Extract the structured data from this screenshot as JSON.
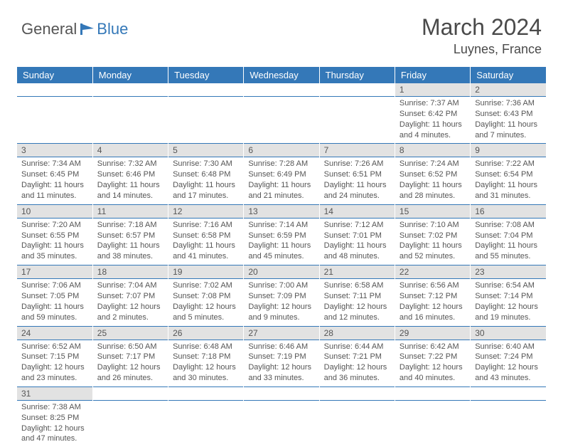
{
  "logo": {
    "text1": "General",
    "text2": "Blue"
  },
  "title": "March 2024",
  "location": "Luynes, France",
  "colors": {
    "header_bg": "#3478b8",
    "header_text": "#ffffff",
    "daynum_bg": "#e2e2e2",
    "text": "#555555",
    "row_border": "#3478b8",
    "logo_blue": "#3478b8"
  },
  "day_headers": [
    "Sunday",
    "Monday",
    "Tuesday",
    "Wednesday",
    "Thursday",
    "Friday",
    "Saturday"
  ],
  "weeks": [
    [
      null,
      null,
      null,
      null,
      null,
      {
        "n": "1",
        "sunrise": "Sunrise: 7:37 AM",
        "sunset": "Sunset: 6:42 PM",
        "daylight": "Daylight: 11 hours and 4 minutes."
      },
      {
        "n": "2",
        "sunrise": "Sunrise: 7:36 AM",
        "sunset": "Sunset: 6:43 PM",
        "daylight": "Daylight: 11 hours and 7 minutes."
      }
    ],
    [
      {
        "n": "3",
        "sunrise": "Sunrise: 7:34 AM",
        "sunset": "Sunset: 6:45 PM",
        "daylight": "Daylight: 11 hours and 11 minutes."
      },
      {
        "n": "4",
        "sunrise": "Sunrise: 7:32 AM",
        "sunset": "Sunset: 6:46 PM",
        "daylight": "Daylight: 11 hours and 14 minutes."
      },
      {
        "n": "5",
        "sunrise": "Sunrise: 7:30 AM",
        "sunset": "Sunset: 6:48 PM",
        "daylight": "Daylight: 11 hours and 17 minutes."
      },
      {
        "n": "6",
        "sunrise": "Sunrise: 7:28 AM",
        "sunset": "Sunset: 6:49 PM",
        "daylight": "Daylight: 11 hours and 21 minutes."
      },
      {
        "n": "7",
        "sunrise": "Sunrise: 7:26 AM",
        "sunset": "Sunset: 6:51 PM",
        "daylight": "Daylight: 11 hours and 24 minutes."
      },
      {
        "n": "8",
        "sunrise": "Sunrise: 7:24 AM",
        "sunset": "Sunset: 6:52 PM",
        "daylight": "Daylight: 11 hours and 28 minutes."
      },
      {
        "n": "9",
        "sunrise": "Sunrise: 7:22 AM",
        "sunset": "Sunset: 6:54 PM",
        "daylight": "Daylight: 11 hours and 31 minutes."
      }
    ],
    [
      {
        "n": "10",
        "sunrise": "Sunrise: 7:20 AM",
        "sunset": "Sunset: 6:55 PM",
        "daylight": "Daylight: 11 hours and 35 minutes."
      },
      {
        "n": "11",
        "sunrise": "Sunrise: 7:18 AM",
        "sunset": "Sunset: 6:57 PM",
        "daylight": "Daylight: 11 hours and 38 minutes."
      },
      {
        "n": "12",
        "sunrise": "Sunrise: 7:16 AM",
        "sunset": "Sunset: 6:58 PM",
        "daylight": "Daylight: 11 hours and 41 minutes."
      },
      {
        "n": "13",
        "sunrise": "Sunrise: 7:14 AM",
        "sunset": "Sunset: 6:59 PM",
        "daylight": "Daylight: 11 hours and 45 minutes."
      },
      {
        "n": "14",
        "sunrise": "Sunrise: 7:12 AM",
        "sunset": "Sunset: 7:01 PM",
        "daylight": "Daylight: 11 hours and 48 minutes."
      },
      {
        "n": "15",
        "sunrise": "Sunrise: 7:10 AM",
        "sunset": "Sunset: 7:02 PM",
        "daylight": "Daylight: 11 hours and 52 minutes."
      },
      {
        "n": "16",
        "sunrise": "Sunrise: 7:08 AM",
        "sunset": "Sunset: 7:04 PM",
        "daylight": "Daylight: 11 hours and 55 minutes."
      }
    ],
    [
      {
        "n": "17",
        "sunrise": "Sunrise: 7:06 AM",
        "sunset": "Sunset: 7:05 PM",
        "daylight": "Daylight: 11 hours and 59 minutes."
      },
      {
        "n": "18",
        "sunrise": "Sunrise: 7:04 AM",
        "sunset": "Sunset: 7:07 PM",
        "daylight": "Daylight: 12 hours and 2 minutes."
      },
      {
        "n": "19",
        "sunrise": "Sunrise: 7:02 AM",
        "sunset": "Sunset: 7:08 PM",
        "daylight": "Daylight: 12 hours and 5 minutes."
      },
      {
        "n": "20",
        "sunrise": "Sunrise: 7:00 AM",
        "sunset": "Sunset: 7:09 PM",
        "daylight": "Daylight: 12 hours and 9 minutes."
      },
      {
        "n": "21",
        "sunrise": "Sunrise: 6:58 AM",
        "sunset": "Sunset: 7:11 PM",
        "daylight": "Daylight: 12 hours and 12 minutes."
      },
      {
        "n": "22",
        "sunrise": "Sunrise: 6:56 AM",
        "sunset": "Sunset: 7:12 PM",
        "daylight": "Daylight: 12 hours and 16 minutes."
      },
      {
        "n": "23",
        "sunrise": "Sunrise: 6:54 AM",
        "sunset": "Sunset: 7:14 PM",
        "daylight": "Daylight: 12 hours and 19 minutes."
      }
    ],
    [
      {
        "n": "24",
        "sunrise": "Sunrise: 6:52 AM",
        "sunset": "Sunset: 7:15 PM",
        "daylight": "Daylight: 12 hours and 23 minutes."
      },
      {
        "n": "25",
        "sunrise": "Sunrise: 6:50 AM",
        "sunset": "Sunset: 7:17 PM",
        "daylight": "Daylight: 12 hours and 26 minutes."
      },
      {
        "n": "26",
        "sunrise": "Sunrise: 6:48 AM",
        "sunset": "Sunset: 7:18 PM",
        "daylight": "Daylight: 12 hours and 30 minutes."
      },
      {
        "n": "27",
        "sunrise": "Sunrise: 6:46 AM",
        "sunset": "Sunset: 7:19 PM",
        "daylight": "Daylight: 12 hours and 33 minutes."
      },
      {
        "n": "28",
        "sunrise": "Sunrise: 6:44 AM",
        "sunset": "Sunset: 7:21 PM",
        "daylight": "Daylight: 12 hours and 36 minutes."
      },
      {
        "n": "29",
        "sunrise": "Sunrise: 6:42 AM",
        "sunset": "Sunset: 7:22 PM",
        "daylight": "Daylight: 12 hours and 40 minutes."
      },
      {
        "n": "30",
        "sunrise": "Sunrise: 6:40 AM",
        "sunset": "Sunset: 7:24 PM",
        "daylight": "Daylight: 12 hours and 43 minutes."
      }
    ],
    [
      {
        "n": "31",
        "sunrise": "Sunrise: 7:38 AM",
        "sunset": "Sunset: 8:25 PM",
        "daylight": "Daylight: 12 hours and 47 minutes."
      },
      null,
      null,
      null,
      null,
      null,
      null
    ]
  ]
}
